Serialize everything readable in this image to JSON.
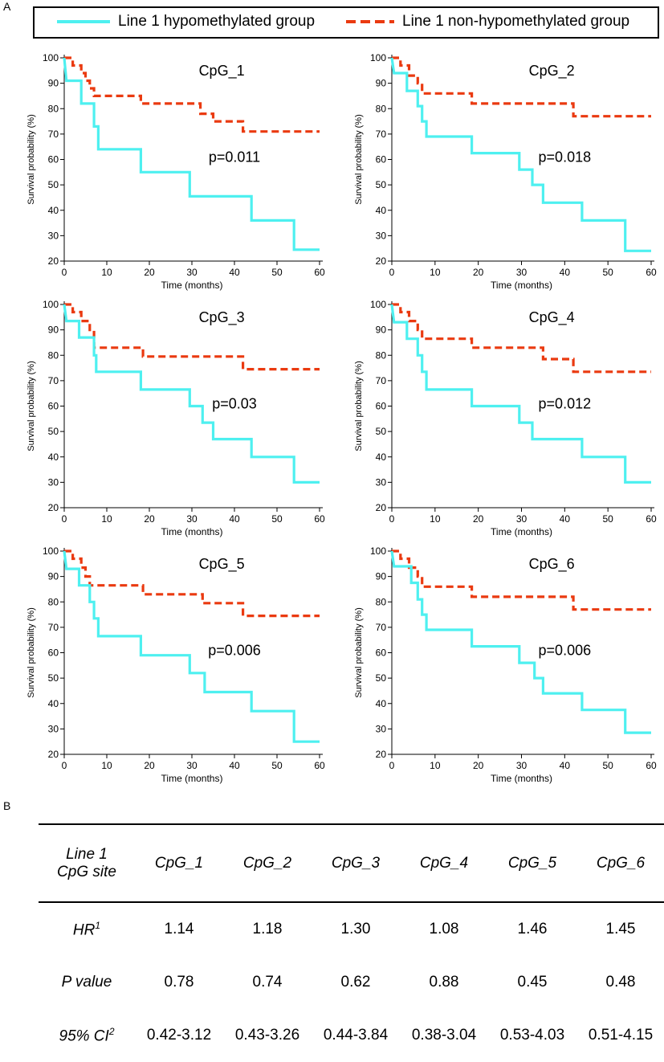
{
  "panel_labels": {
    "a": "A",
    "b": "B"
  },
  "legend": {
    "hypo_label": "Line 1 hypomethylated group",
    "nonhypo_label": "Line 1 non-hypomethylated group",
    "hypo_color": "#4ef0f0",
    "nonhypo_color": "#ea3a10"
  },
  "chart_data": [
    {
      "type": "line",
      "title": "CpG_1",
      "annotation": "p=0.011",
      "xlabel": "Time (months)",
      "ylabel": "Survival probability (%)",
      "xlim": [
        0,
        60
      ],
      "ylim": [
        20,
        100
      ],
      "x_ticks": [
        0,
        10,
        20,
        30,
        40,
        50,
        60
      ],
      "y_ticks": [
        20,
        30,
        40,
        50,
        60,
        70,
        80,
        90,
        100
      ],
      "series": [
        {
          "name": "Line 1 hypomethylated group",
          "step": [
            [
              0,
              100
            ],
            [
              0.5,
              91
            ],
            [
              4,
              91
            ],
            [
              4,
              82
            ],
            [
              7,
              82
            ],
            [
              7,
              73
            ],
            [
              8,
              73
            ],
            [
              8,
              64
            ],
            [
              18,
              64
            ],
            [
              18,
              55
            ],
            [
              29.5,
              55
            ],
            [
              29.5,
              45.5
            ],
            [
              44,
              45.5
            ],
            [
              44,
              36
            ],
            [
              54,
              36
            ],
            [
              54,
              24.5
            ],
            [
              60,
              24.5
            ]
          ]
        },
        {
          "name": "Line 1 non-hypomethylated group",
          "step": [
            [
              0,
              100
            ],
            [
              2,
              100
            ],
            [
              2,
              97
            ],
            [
              4,
              97
            ],
            [
              4,
              94
            ],
            [
              5,
              94
            ],
            [
              5,
              91
            ],
            [
              6,
              91
            ],
            [
              6,
              88
            ],
            [
              7,
              88
            ],
            [
              7,
              85
            ],
            [
              18,
              85
            ],
            [
              18,
              82
            ],
            [
              32,
              82
            ],
            [
              32,
              78
            ],
            [
              35,
              78
            ],
            [
              35,
              75
            ],
            [
              42,
              75
            ],
            [
              42,
              71
            ],
            [
              60,
              71
            ]
          ]
        }
      ]
    },
    {
      "type": "line",
      "title": "CpG_2",
      "annotation": "p=0.018",
      "xlabel": "Time (months)",
      "ylabel": "Survival probability (%)",
      "xlim": [
        0,
        60
      ],
      "ylim": [
        20,
        100
      ],
      "x_ticks": [
        0,
        10,
        20,
        30,
        40,
        50,
        60
      ],
      "y_ticks": [
        20,
        30,
        40,
        50,
        60,
        70,
        80,
        90,
        100
      ],
      "series": [
        {
          "name": "Line 1 hypomethylated group",
          "step": [
            [
              0,
              100
            ],
            [
              0.5,
              94
            ],
            [
              3.5,
              94
            ],
            [
              3.5,
              87
            ],
            [
              6,
              87
            ],
            [
              6,
              81
            ],
            [
              7,
              81
            ],
            [
              7,
              75
            ],
            [
              8,
              75
            ],
            [
              8,
              69
            ],
            [
              18.5,
              69
            ],
            [
              18.5,
              62.5
            ],
            [
              29.5,
              62.5
            ],
            [
              29.5,
              56
            ],
            [
              32.5,
              56
            ],
            [
              32.5,
              50
            ],
            [
              35,
              50
            ],
            [
              35,
              43
            ],
            [
              44,
              43
            ],
            [
              44,
              36
            ],
            [
              54,
              36
            ],
            [
              54,
              24
            ],
            [
              60,
              24
            ]
          ]
        },
        {
          "name": "Line 1 non-hypomethylated group",
          "step": [
            [
              0,
              100
            ],
            [
              2,
              100
            ],
            [
              2,
              97
            ],
            [
              4,
              97
            ],
            [
              4,
              93
            ],
            [
              6,
              93
            ],
            [
              6,
              90
            ],
            [
              7,
              90
            ],
            [
              7,
              86
            ],
            [
              18.5,
              86
            ],
            [
              18.5,
              82
            ],
            [
              42,
              82
            ],
            [
              42,
              77
            ],
            [
              60,
              77
            ]
          ]
        }
      ]
    },
    {
      "type": "line",
      "title": "CpG_3",
      "annotation": "p=0.03",
      "xlabel": "Time (months)",
      "ylabel": "Survival probability (%)",
      "xlim": [
        0,
        60
      ],
      "ylim": [
        20,
        100
      ],
      "x_ticks": [
        0,
        10,
        20,
        30,
        40,
        50,
        60
      ],
      "y_ticks": [
        20,
        30,
        40,
        50,
        60,
        70,
        80,
        90,
        100
      ],
      "series": [
        {
          "name": "Line 1 hypomethylated group",
          "step": [
            [
              0,
              100
            ],
            [
              0.5,
              93.5
            ],
            [
              3.5,
              93.5
            ],
            [
              3.5,
              87
            ],
            [
              7,
              87
            ],
            [
              7,
              80
            ],
            [
              7.5,
              80
            ],
            [
              7.5,
              73.5
            ],
            [
              18,
              73.5
            ],
            [
              18,
              66.5
            ],
            [
              29.5,
              66.5
            ],
            [
              29.5,
              60
            ],
            [
              32.5,
              60
            ],
            [
              32.5,
              53.5
            ],
            [
              35,
              53.5
            ],
            [
              35,
              47
            ],
            [
              44,
              47
            ],
            [
              44,
              40
            ],
            [
              54,
              40
            ],
            [
              54,
              30
            ],
            [
              60,
              30
            ]
          ]
        },
        {
          "name": "Line 1 non-hypomethylated group",
          "step": [
            [
              0,
              100
            ],
            [
              2,
              100
            ],
            [
              2,
              97
            ],
            [
              4,
              97
            ],
            [
              4,
              93.5
            ],
            [
              6,
              93.5
            ],
            [
              6,
              90
            ],
            [
              7,
              90
            ],
            [
              7,
              83
            ],
            [
              18.5,
              83
            ],
            [
              18.5,
              79.5
            ],
            [
              42,
              79.5
            ],
            [
              42,
              74.5
            ],
            [
              60,
              74.5
            ]
          ]
        }
      ]
    },
    {
      "type": "line",
      "title": "CpG_4",
      "annotation": "p=0.012",
      "xlabel": "Time (months)",
      "ylabel": "Survival probability (%)",
      "xlim": [
        0,
        60
      ],
      "ylim": [
        20,
        100
      ],
      "x_ticks": [
        0,
        10,
        20,
        30,
        40,
        50,
        60
      ],
      "y_ticks": [
        20,
        30,
        40,
        50,
        60,
        70,
        80,
        90,
        100
      ],
      "series": [
        {
          "name": "Line 1 hypomethylated group",
          "step": [
            [
              0,
              100
            ],
            [
              0.5,
              93
            ],
            [
              3.5,
              93
            ],
            [
              3.5,
              86.5
            ],
            [
              6,
              86.5
            ],
            [
              6,
              80
            ],
            [
              7,
              80
            ],
            [
              7,
              73.5
            ],
            [
              8,
              73.5
            ],
            [
              8,
              66.5
            ],
            [
              18.5,
              66.5
            ],
            [
              18.5,
              60
            ],
            [
              29.5,
              60
            ],
            [
              29.5,
              53.5
            ],
            [
              32.5,
              53.5
            ],
            [
              32.5,
              47
            ],
            [
              44,
              47
            ],
            [
              44,
              40
            ],
            [
              54,
              40
            ],
            [
              54,
              30
            ],
            [
              60,
              30
            ]
          ]
        },
        {
          "name": "Line 1 non-hypomethylated group",
          "step": [
            [
              0,
              100
            ],
            [
              2,
              100
            ],
            [
              2,
              97
            ],
            [
              4,
              97
            ],
            [
              4,
              93.5
            ],
            [
              6,
              93.5
            ],
            [
              6,
              90
            ],
            [
              7,
              90
            ],
            [
              7,
              86.5
            ],
            [
              18.5,
              86.5
            ],
            [
              18.5,
              83
            ],
            [
              35,
              83
            ],
            [
              35,
              78.5
            ],
            [
              42,
              78.5
            ],
            [
              42,
              73.5
            ],
            [
              60,
              73.5
            ]
          ]
        }
      ]
    },
    {
      "type": "line",
      "title": "CpG_5",
      "annotation": "p=0.006",
      "xlabel": "Time (months)",
      "ylabel": "Survival probability (%)",
      "xlim": [
        0,
        60
      ],
      "ylim": [
        20,
        100
      ],
      "x_ticks": [
        0,
        10,
        20,
        30,
        40,
        50,
        60
      ],
      "y_ticks": [
        20,
        30,
        40,
        50,
        60,
        70,
        80,
        90,
        100
      ],
      "series": [
        {
          "name": "Line 1 hypomethylated group",
          "step": [
            [
              0,
              100
            ],
            [
              0.5,
              93
            ],
            [
              3.5,
              93
            ],
            [
              3.5,
              86.5
            ],
            [
              6,
              86.5
            ],
            [
              6,
              80
            ],
            [
              7,
              80
            ],
            [
              7,
              73.5
            ],
            [
              8,
              73.5
            ],
            [
              8,
              66.5
            ],
            [
              18,
              66.5
            ],
            [
              18,
              59
            ],
            [
              29.5,
              59
            ],
            [
              29.5,
              52
            ],
            [
              33,
              52
            ],
            [
              33,
              44.5
            ],
            [
              44,
              44.5
            ],
            [
              44,
              37
            ],
            [
              54,
              37
            ],
            [
              54,
              25
            ],
            [
              60,
              25
            ]
          ]
        },
        {
          "name": "Line 1 non-hypomethylated group",
          "step": [
            [
              0,
              100
            ],
            [
              2,
              100
            ],
            [
              2,
              97
            ],
            [
              4,
              97
            ],
            [
              4,
              93.5
            ],
            [
              5,
              93.5
            ],
            [
              5,
              90
            ],
            [
              6,
              90
            ],
            [
              6,
              86.5
            ],
            [
              18.5,
              86.5
            ],
            [
              18.5,
              83
            ],
            [
              32.5,
              83
            ],
            [
              32.5,
              79.5
            ],
            [
              42,
              79.5
            ],
            [
              42,
              74.5
            ],
            [
              60,
              74.5
            ]
          ]
        }
      ]
    },
    {
      "type": "line",
      "title": "CpG_6",
      "annotation": "p=0.006",
      "xlabel": "Time (months)",
      "ylabel": "Survival probability (%)",
      "xlim": [
        0,
        60
      ],
      "ylim": [
        20,
        100
      ],
      "x_ticks": [
        0,
        10,
        20,
        30,
        40,
        50,
        60
      ],
      "y_ticks": [
        20,
        30,
        40,
        50,
        60,
        70,
        80,
        90,
        100
      ],
      "series": [
        {
          "name": "Line 1 hypomethylated group",
          "step": [
            [
              0,
              100
            ],
            [
              0.5,
              94
            ],
            [
              4.5,
              94
            ],
            [
              4.5,
              87.5
            ],
            [
              6,
              87.5
            ],
            [
              6,
              81
            ],
            [
              7,
              81
            ],
            [
              7,
              75
            ],
            [
              8,
              75
            ],
            [
              8,
              69
            ],
            [
              18.5,
              69
            ],
            [
              18.5,
              62.5
            ],
            [
              29.5,
              62.5
            ],
            [
              29.5,
              56
            ],
            [
              33,
              56
            ],
            [
              33,
              50
            ],
            [
              35,
              50
            ],
            [
              35,
              44
            ],
            [
              44,
              44
            ],
            [
              44,
              37.5
            ],
            [
              54,
              37.5
            ],
            [
              54,
              28.5
            ],
            [
              60,
              28.5
            ]
          ]
        },
        {
          "name": "Line 1 non-hypomethylated group",
          "step": [
            [
              0,
              100
            ],
            [
              2,
              100
            ],
            [
              2,
              97
            ],
            [
              4,
              97
            ],
            [
              4,
              93.5
            ],
            [
              6,
              93.5
            ],
            [
              6,
              90
            ],
            [
              7,
              90
            ],
            [
              7,
              86
            ],
            [
              18.5,
              86
            ],
            [
              18.5,
              82
            ],
            [
              42,
              82
            ],
            [
              42,
              77
            ],
            [
              60,
              77
            ]
          ]
        }
      ]
    },
    {
      "type": "table",
      "header": {
        "site_label_line1": "Line 1",
        "site_label_line2": "CpG site",
        "sites": [
          "CpG_1",
          "CpG_2",
          "CpG_3",
          "CpG_4",
          "CpG_5",
          "CpG_6"
        ]
      },
      "rows": [
        {
          "label": "HR",
          "sup": "1",
          "values": [
            "1.14",
            "1.18",
            "1.30",
            "1.08",
            "1.46",
            "1.45"
          ]
        },
        {
          "label": "P value",
          "sup": "",
          "values": [
            "0.78",
            "0.74",
            "0.62",
            "0.88",
            "0.45",
            "0.48"
          ]
        },
        {
          "label": "95% CI",
          "sup": "2",
          "values": [
            "0.42-3.12",
            "0.43-3.26",
            "0.44-3.84",
            "0.38-3.04",
            "0.53-4.03",
            "0.51-4.15"
          ]
        }
      ]
    }
  ]
}
